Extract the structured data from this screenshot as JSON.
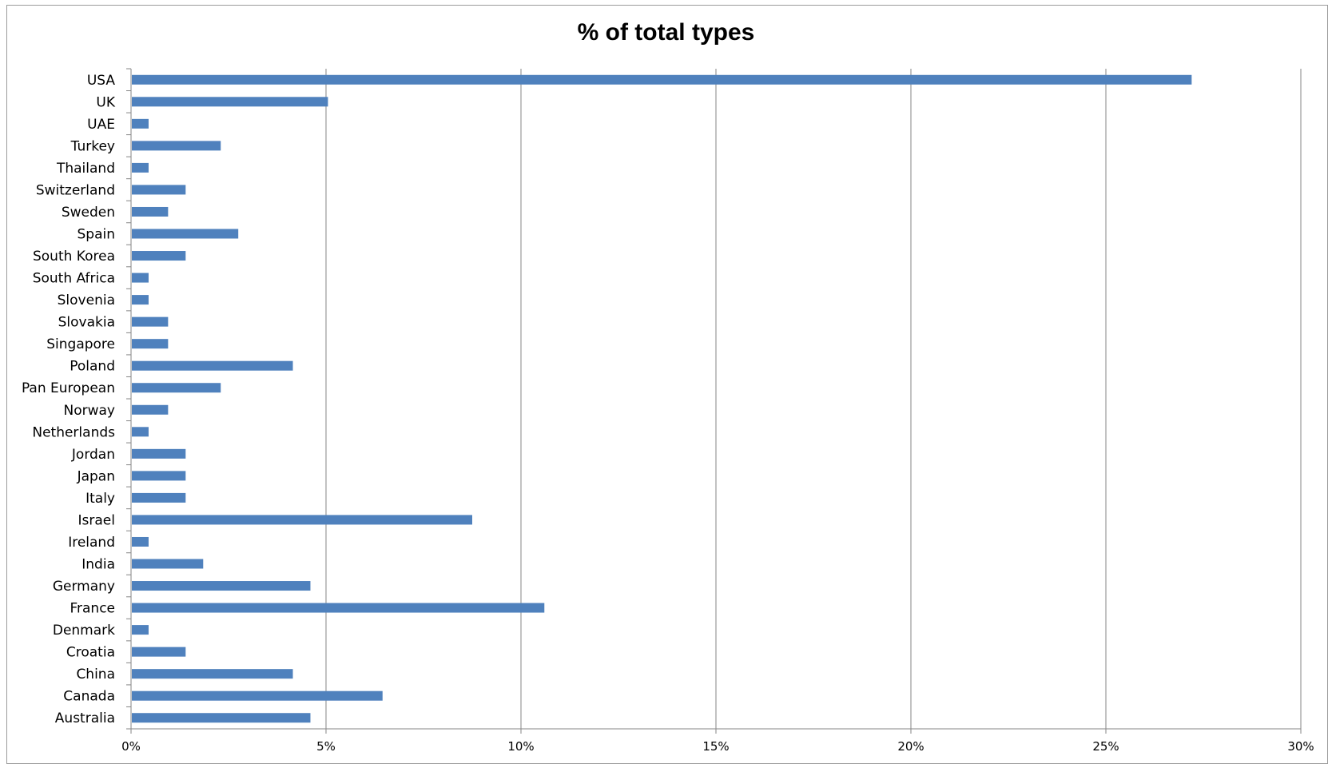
{
  "chart_data": {
    "type": "bar",
    "orientation": "horizontal",
    "title": "% of total types",
    "xlabel": "",
    "ylabel": "",
    "xlim": [
      0,
      30
    ],
    "x_ticks": [
      0,
      5,
      10,
      15,
      20,
      25,
      30
    ],
    "x_tick_labels": [
      "0%",
      "5%",
      "10%",
      "15%",
      "20%",
      "25%",
      "30%"
    ],
    "grid": "vertical",
    "legend": "none",
    "bar_color": "#4f81bd",
    "categories": [
      "USA",
      "UK",
      "UAE",
      "Turkey",
      "Thailand",
      "Switzerland",
      "Sweden",
      "Spain",
      "South Korea",
      "South Africa",
      "Slovenia",
      "Slovakia",
      "Singapore",
      "Poland",
      "Pan European",
      "Norway",
      "Netherlands",
      "Jordan",
      "Japan",
      "Italy",
      "Israel",
      "Ireland",
      "India",
      "Germany",
      "France",
      "Denmark",
      "Croatia",
      "China",
      "Canada",
      "Australia"
    ],
    "values": [
      27.2,
      5.05,
      0.45,
      2.3,
      0.45,
      1.4,
      0.95,
      2.75,
      1.4,
      0.45,
      0.45,
      0.95,
      0.95,
      4.15,
      2.3,
      0.95,
      0.45,
      1.4,
      1.4,
      1.4,
      8.75,
      0.45,
      1.85,
      4.6,
      10.6,
      0.45,
      1.4,
      4.15,
      6.45,
      4.6
    ]
  }
}
